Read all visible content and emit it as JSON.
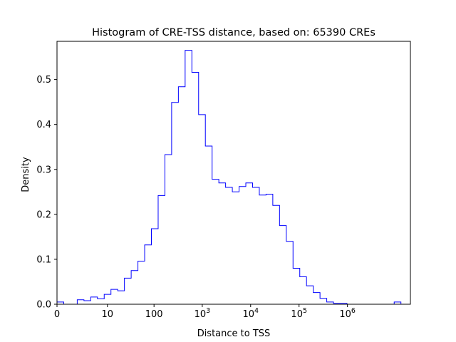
{
  "chart_data": {
    "type": "histogram-step",
    "title": "Histogram of CRE-TSS distance, based on: 65390 CREs",
    "xlabel": "Distance to TSS",
    "ylabel": "Density",
    "x_scale": "symlog (log10(distance + 1))",
    "x_domain": [
      0,
      7.3
    ],
    "ylim": [
      0,
      0.585
    ],
    "x_ticks": [
      {
        "value": 0,
        "label": "0"
      },
      {
        "value": 10,
        "label": "10"
      },
      {
        "value": 100,
        "label": "100"
      },
      {
        "value": 1000,
        "label": "10",
        "sup": "3"
      },
      {
        "value": 10000,
        "label": "10",
        "sup": "4"
      },
      {
        "value": 100000,
        "label": "10",
        "sup": "5"
      },
      {
        "value": 1000000,
        "label": "10",
        "sup": "6"
      }
    ],
    "y_ticks": [
      0.0,
      0.1,
      0.2,
      0.3,
      0.4,
      0.5
    ],
    "y_tick_labels": [
      "0.0",
      "0.1",
      "0.2",
      "0.3",
      "0.4",
      "0.5"
    ],
    "grid": false,
    "line_color": "#0000ff",
    "bins": {
      "start": 0,
      "width": 0.1393,
      "values": [
        0.005,
        0.0,
        0.0,
        0.01,
        0.008,
        0.016,
        0.012,
        0.022,
        0.033,
        0.03,
        0.058,
        0.075,
        0.096,
        0.132,
        0.168,
        0.242,
        0.333,
        0.449,
        0.484,
        0.565,
        0.516,
        0.422,
        0.352,
        0.278,
        0.27,
        0.26,
        0.25,
        0.262,
        0.27,
        0.26,
        0.243,
        0.245,
        0.22,
        0.175,
        0.14,
        0.08,
        0.061,
        0.041,
        0.026,
        0.013,
        0.005,
        0.002,
        0.002,
        0.0,
        0.0,
        0.0,
        0.0,
        0.0,
        0.0,
        0.0,
        0.005
      ]
    }
  }
}
